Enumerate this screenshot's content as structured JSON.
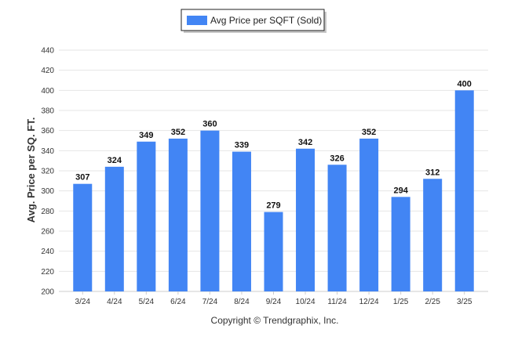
{
  "chart_data": {
    "type": "bar",
    "categories": [
      "3/24",
      "4/24",
      "5/24",
      "6/24",
      "7/24",
      "8/24",
      "9/24",
      "10/24",
      "11/24",
      "12/24",
      "1/25",
      "2/25",
      "3/25"
    ],
    "series": [
      {
        "name": "Avg Price per SQFT (Sold)",
        "values": [
          307,
          324,
          349,
          352,
          360,
          339,
          279,
          342,
          326,
          352,
          294,
          312,
          400
        ]
      }
    ],
    "ylabel": "Avg. Price per SQ. FT.",
    "xlabel": "",
    "ylim": [
      200,
      440
    ],
    "yticks": [
      200,
      220,
      240,
      260,
      280,
      300,
      320,
      340,
      360,
      380,
      400,
      420,
      440
    ],
    "grid": true,
    "legend_position": "top-center",
    "bar_color": "#4285f4"
  },
  "footer": {
    "copyright": "Copyright © Trendgraphix, Inc."
  }
}
